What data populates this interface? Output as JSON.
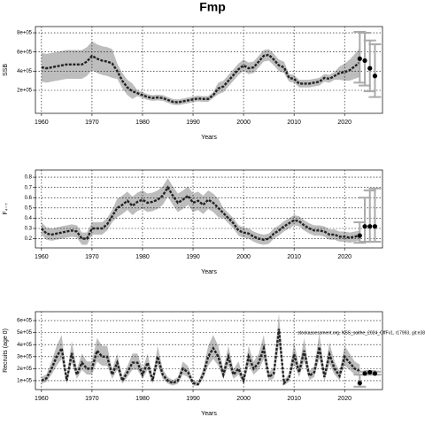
{
  "title": "Fmp",
  "chart_data": [
    {
      "type": "line",
      "ylabel": "SSB",
      "xlabel": "Years",
      "xlim": [
        1958.8,
        2027.5
      ],
      "xticks": [
        1960,
        1970,
        1980,
        1990,
        2000,
        2010,
        2020
      ],
      "ylim": [
        -40000,
        865000
      ],
      "yticks": [
        {
          "value": 200000,
          "label": "2e+05"
        },
        {
          "value": 400000,
          "label": "4e+05"
        },
        {
          "value": 600000,
          "label": "6e+05"
        },
        {
          "value": 800000,
          "label": "8e+05"
        }
      ],
      "grid": true,
      "color": "#222222",
      "band_color": "#bdbdbd",
      "x": [
        1960,
        1961,
        1962,
        1963,
        1964,
        1965,
        1966,
        1967,
        1968,
        1969,
        1970,
        1971,
        1972,
        1973,
        1974,
        1975,
        1976,
        1977,
        1978,
        1979,
        1980,
        1981,
        1982,
        1983,
        1984,
        1985,
        1986,
        1987,
        1988,
        1989,
        1990,
        1991,
        1992,
        1993,
        1994,
        1995,
        1996,
        1997,
        1998,
        1999,
        2000,
        2001,
        2002,
        2003,
        2004,
        2005,
        2006,
        2007,
        2008,
        2009,
        2010,
        2011,
        2012,
        2013,
        2014,
        2015,
        2016,
        2017,
        2018,
        2019,
        2020,
        2021,
        2022,
        2023
      ],
      "values": [
        440000,
        430000,
        440000,
        450000,
        460000,
        470000,
        470000,
        470000,
        470000,
        500000,
        560000,
        530000,
        510000,
        500000,
        480000,
        400000,
        300000,
        230000,
        190000,
        170000,
        150000,
        130000,
        120000,
        125000,
        120000,
        100000,
        80000,
        75000,
        85000,
        95000,
        105000,
        115000,
        110000,
        110000,
        150000,
        220000,
        240000,
        300000,
        360000,
        420000,
        460000,
        430000,
        440000,
        500000,
        560000,
        570000,
        520000,
        460000,
        440000,
        330000,
        320000,
        270000,
        270000,
        270000,
        280000,
        290000,
        330000,
        320000,
        350000,
        380000,
        390000,
        410000,
        450000,
        490000
      ],
      "lower": [
        290000,
        280000,
        290000,
        300000,
        310000,
        320000,
        320000,
        320000,
        320000,
        350000,
        410000,
        380000,
        360000,
        350000,
        330000,
        320000,
        220000,
        150000,
        110000,
        140000,
        120000,
        100000,
        90000,
        95000,
        90000,
        70000,
        50000,
        45000,
        55000,
        65000,
        75000,
        85000,
        80000,
        80000,
        120000,
        160000,
        180000,
        240000,
        300000,
        360000,
        400000,
        370000,
        380000,
        440000,
        500000,
        510000,
        460000,
        400000,
        380000,
        290000,
        280000,
        230000,
        230000,
        230000,
        240000,
        250000,
        290000,
        280000,
        310000,
        310000,
        300000,
        300000,
        320000,
        340000
      ],
      "upper": [
        590000,
        580000,
        590000,
        600000,
        610000,
        620000,
        620000,
        620000,
        620000,
        650000,
        710000,
        680000,
        660000,
        650000,
        630000,
        480000,
        380000,
        310000,
        270000,
        200000,
        180000,
        160000,
        150000,
        155000,
        150000,
        130000,
        110000,
        105000,
        115000,
        125000,
        135000,
        145000,
        140000,
        140000,
        180000,
        280000,
        300000,
        360000,
        420000,
        480000,
        520000,
        490000,
        500000,
        560000,
        620000,
        630000,
        580000,
        520000,
        500000,
        370000,
        360000,
        310000,
        310000,
        310000,
        320000,
        330000,
        370000,
        360000,
        390000,
        450000,
        480000,
        520000,
        580000,
        640000
      ],
      "forecast": {
        "x": [
          2023,
          2024,
          2025,
          2026
        ],
        "values": [
          530000,
          510000,
          430000,
          350000
        ],
        "lower": [
          280000,
          250000,
          190000,
          130000
        ],
        "upper": [
          810000,
          800000,
          720000,
          680000
        ],
        "color": "#000000",
        "bar_color": "#aaaaaa"
      }
    },
    {
      "type": "line",
      "ylabel": "F₄₋₇",
      "xlabel": "Years",
      "xlim": [
        1958.8,
        2027.5
      ],
      "xticks": [
        1960,
        1970,
        1980,
        1990,
        2000,
        2010,
        2020
      ],
      "ylim": [
        0.11,
        0.87
      ],
      "yticks": [
        0.2,
        0.3,
        0.4,
        0.5,
        0.6,
        0.7,
        0.8
      ],
      "grid": true,
      "color": "#222222",
      "band_color": "#bdbdbd",
      "x": [
        1960,
        1961,
        1962,
        1963,
        1964,
        1965,
        1966,
        1967,
        1968,
        1969,
        1970,
        1971,
        1972,
        1973,
        1974,
        1975,
        1976,
        1977,
        1978,
        1979,
        1980,
        1981,
        1982,
        1983,
        1984,
        1985,
        1986,
        1987,
        1988,
        1989,
        1990,
        1991,
        1992,
        1993,
        1994,
        1995,
        1996,
        1997,
        1998,
        1999,
        2000,
        2001,
        2002,
        2003,
        2004,
        2005,
        2006,
        2007,
        2008,
        2009,
        2010,
        2011,
        2012,
        2013,
        2014,
        2015,
        2016,
        2017,
        2018,
        2019,
        2020,
        2021,
        2022,
        2023
      ],
      "values": [
        0.3,
        0.25,
        0.24,
        0.25,
        0.26,
        0.27,
        0.28,
        0.27,
        0.2,
        0.2,
        0.3,
        0.3,
        0.3,
        0.34,
        0.42,
        0.5,
        0.53,
        0.57,
        0.52,
        0.56,
        0.58,
        0.55,
        0.56,
        0.58,
        0.62,
        0.7,
        0.62,
        0.55,
        0.58,
        0.62,
        0.55,
        0.57,
        0.53,
        0.58,
        0.55,
        0.5,
        0.45,
        0.4,
        0.35,
        0.28,
        0.26,
        0.25,
        0.22,
        0.2,
        0.19,
        0.2,
        0.25,
        0.28,
        0.32,
        0.35,
        0.38,
        0.37,
        0.33,
        0.3,
        0.28,
        0.28,
        0.27,
        0.24,
        0.24,
        0.22,
        0.22,
        0.21,
        0.22,
        0.23
      ],
      "lower": [
        0.24,
        0.19,
        0.18,
        0.19,
        0.2,
        0.21,
        0.22,
        0.21,
        0.14,
        0.14,
        0.24,
        0.24,
        0.24,
        0.28,
        0.36,
        0.41,
        0.44,
        0.48,
        0.43,
        0.47,
        0.49,
        0.46,
        0.47,
        0.49,
        0.53,
        0.61,
        0.53,
        0.46,
        0.49,
        0.53,
        0.46,
        0.48,
        0.44,
        0.49,
        0.46,
        0.41,
        0.4,
        0.35,
        0.3,
        0.23,
        0.21,
        0.2,
        0.17,
        0.15,
        0.14,
        0.15,
        0.2,
        0.23,
        0.27,
        0.3,
        0.33,
        0.32,
        0.28,
        0.25,
        0.23,
        0.23,
        0.22,
        0.19,
        0.19,
        0.17,
        0.17,
        0.16,
        0.17,
        0.18
      ],
      "upper": [
        0.36,
        0.31,
        0.3,
        0.31,
        0.32,
        0.33,
        0.34,
        0.33,
        0.26,
        0.26,
        0.36,
        0.36,
        0.36,
        0.4,
        0.48,
        0.59,
        0.62,
        0.66,
        0.61,
        0.65,
        0.67,
        0.64,
        0.65,
        0.67,
        0.71,
        0.79,
        0.71,
        0.64,
        0.67,
        0.71,
        0.64,
        0.66,
        0.62,
        0.67,
        0.64,
        0.59,
        0.5,
        0.45,
        0.4,
        0.33,
        0.31,
        0.3,
        0.27,
        0.25,
        0.24,
        0.25,
        0.3,
        0.33,
        0.37,
        0.4,
        0.43,
        0.42,
        0.38,
        0.35,
        0.33,
        0.33,
        0.32,
        0.29,
        0.29,
        0.27,
        0.27,
        0.26,
        0.27,
        0.28
      ],
      "forecast": {
        "x": [
          2023,
          2024,
          2025,
          2026
        ],
        "values": [
          0.23,
          0.32,
          0.32,
          0.32
        ],
        "lower": [
          0.16,
          0.17,
          0.17,
          0.17
        ],
        "upper": [
          0.36,
          0.6,
          0.67,
          0.69
        ],
        "color": "#000000",
        "bar_color": "#aaaaaa"
      }
    },
    {
      "type": "line",
      "ylabel": "Recruits (age 0)",
      "xlabel": "Years",
      "annotation": "stockassessment.org, NSS_saithe_2024_OffFv1, r17993, git:e38",
      "xlim": [
        1958.8,
        2027.5
      ],
      "xticks": [
        1960,
        1970,
        1980,
        1990,
        2000,
        2010,
        2020
      ],
      "ylim": [
        26000,
        674000
      ],
      "yticks": [
        {
          "value": 100000,
          "label": "1e+05"
        },
        {
          "value": 200000,
          "label": "2e+05"
        },
        {
          "value": 300000,
          "label": "3e+05"
        },
        {
          "value": 400000,
          "label": "4e+05"
        },
        {
          "value": 500000,
          "label": "5e+05"
        },
        {
          "value": 600000,
          "label": "6e+05"
        }
      ],
      "grid": true,
      "color": "#222222",
      "band_color": "#bdbdbd",
      "x": [
        1960,
        1961,
        1962,
        1963,
        1964,
        1965,
        1966,
        1967,
        1968,
        1969,
        1970,
        1971,
        1972,
        1973,
        1974,
        1975,
        1976,
        1977,
        1978,
        1979,
        1980,
        1981,
        1982,
        1983,
        1984,
        1985,
        1986,
        1987,
        1988,
        1989,
        1990,
        1991,
        1992,
        1993,
        1994,
        1995,
        1996,
        1997,
        1998,
        1999,
        2000,
        2001,
        2002,
        2003,
        2004,
        2005,
        2006,
        2007,
        2008,
        2009,
        2010,
        2011,
        2012,
        2013,
        2014,
        2015,
        2016,
        2017,
        2018,
        2019,
        2020,
        2021,
        2022,
        2023
      ],
      "values": [
        100000,
        120000,
        200000,
        300000,
        370000,
        100000,
        330000,
        150000,
        250000,
        200000,
        200000,
        350000,
        300000,
        300000,
        150000,
        250000,
        100000,
        170000,
        250000,
        250000,
        150000,
        250000,
        100000,
        300000,
        150000,
        100000,
        80000,
        100000,
        200000,
        170000,
        80000,
        70000,
        150000,
        300000,
        370000,
        300000,
        150000,
        300000,
        150000,
        200000,
        100000,
        300000,
        200000,
        250000,
        370000,
        130000,
        160000,
        530000,
        80000,
        120000,
        320000,
        170000,
        350000,
        140000,
        170000,
        380000,
        130000,
        320000,
        200000,
        140000,
        300000,
        250000,
        200000,
        180000
      ],
      "lower": [
        75000,
        90000,
        150000,
        225000,
        280000,
        75000,
        250000,
        115000,
        190000,
        150000,
        150000,
        260000,
        225000,
        225000,
        115000,
        190000,
        75000,
        130000,
        190000,
        190000,
        115000,
        190000,
        75000,
        225000,
        115000,
        75000,
        60000,
        75000,
        150000,
        130000,
        60000,
        55000,
        115000,
        225000,
        280000,
        225000,
        115000,
        225000,
        115000,
        150000,
        75000,
        225000,
        150000,
        190000,
        280000,
        100000,
        120000,
        400000,
        60000,
        90000,
        240000,
        130000,
        260000,
        105000,
        130000,
        285000,
        100000,
        240000,
        150000,
        105000,
        225000,
        190000,
        150000,
        135000
      ],
      "upper": [
        130000,
        155000,
        260000,
        390000,
        480000,
        130000,
        430000,
        195000,
        325000,
        260000,
        260000,
        455000,
        390000,
        390000,
        195000,
        325000,
        130000,
        220000,
        325000,
        325000,
        195000,
        325000,
        130000,
        390000,
        195000,
        130000,
        105000,
        130000,
        260000,
        220000,
        105000,
        90000,
        195000,
        390000,
        480000,
        390000,
        195000,
        390000,
        195000,
        260000,
        130000,
        390000,
        260000,
        325000,
        480000,
        170000,
        210000,
        660000,
        105000,
        155000,
        415000,
        220000,
        455000,
        180000,
        220000,
        495000,
        170000,
        415000,
        260000,
        180000,
        390000,
        325000,
        260000,
        235000
      ],
      "forecast": {
        "x": [
          2023,
          2024,
          2025,
          2026
        ],
        "values": [
          80000,
          160000,
          170000,
          160000
        ],
        "lower": [
          50000,
          150000,
          160000,
          150000
        ],
        "upper": [
          150000,
          175000,
          180000,
          175000
        ],
        "color": "#000000",
        "bar_color": "#aaaaaa"
      }
    }
  ]
}
